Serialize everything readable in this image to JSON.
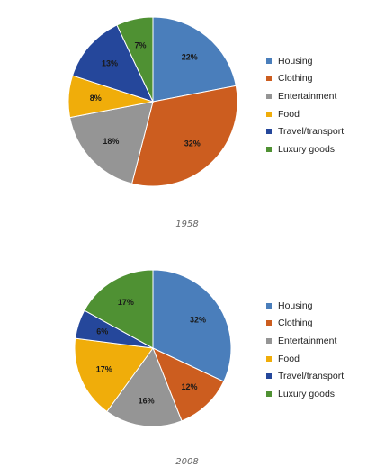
{
  "colors": {
    "Housing": "#4a7ebb",
    "Clothing": "#cc5d1f",
    "Entertainment": "#959595",
    "Food": "#f0ad0a",
    "Travel/transport": "#25479b",
    "Luxury goods": "#4f9133"
  },
  "chart_data": [
    {
      "type": "pie",
      "title": "1958",
      "categories": [
        "Housing",
        "Clothing",
        "Entertainment",
        "Food",
        "Travel/transport",
        "Luxury goods"
      ],
      "values": [
        22,
        32,
        18,
        8,
        13,
        7
      ],
      "labels": [
        "22%",
        "32%",
        "18%",
        "8%",
        "13%",
        "7%"
      ],
      "legend_position": "right"
    },
    {
      "type": "pie",
      "title": "2008",
      "categories": [
        "Housing",
        "Clothing",
        "Entertainment",
        "Food",
        "Travel/transport",
        "Luxury goods"
      ],
      "values": [
        32,
        12,
        16,
        17,
        6,
        17
      ],
      "labels": [
        "32%",
        "12%",
        "16%",
        "17%",
        "6%",
        "17%"
      ],
      "legend_position": "right"
    }
  ]
}
